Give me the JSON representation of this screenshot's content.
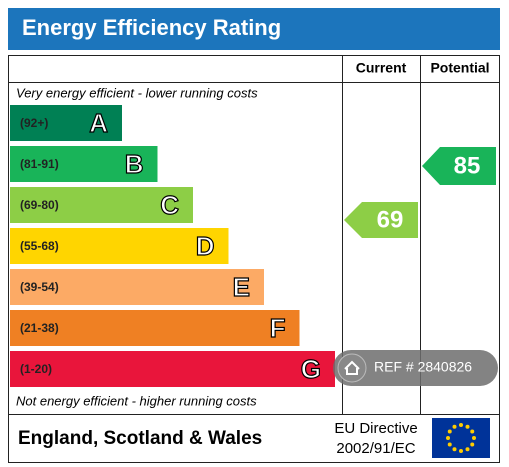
{
  "title": "Energy Efficiency Rating",
  "headers": {
    "current": "Current",
    "potential": "Potential"
  },
  "top_note": "Very energy efficient - lower running costs",
  "bottom_note": "Not energy efficient - higher running costs",
  "bands": [
    {
      "range": "(92+)",
      "letter": "A",
      "color": "#008054"
    },
    {
      "range": "(81-91)",
      "letter": "B",
      "color": "#19b459"
    },
    {
      "range": "(69-80)",
      "letter": "C",
      "color": "#8dce46"
    },
    {
      "range": "(55-68)",
      "letter": "D",
      "color": "#ffd500"
    },
    {
      "range": "(39-54)",
      "letter": "E",
      "color": "#fcaa65"
    },
    {
      "range": "(21-38)",
      "letter": "F",
      "color": "#ef8023"
    },
    {
      "range": "(1-20)",
      "letter": "G",
      "color": "#e9153b"
    }
  ],
  "current": {
    "value": 69,
    "color": "#8dce46"
  },
  "potential": {
    "value": 85,
    "color": "#19b459"
  },
  "footer": {
    "region": "England, Scotland & Wales",
    "directive_line1": "EU Directive",
    "directive_line2": "2002/91/EC"
  },
  "reference": "REF # 2840826"
}
